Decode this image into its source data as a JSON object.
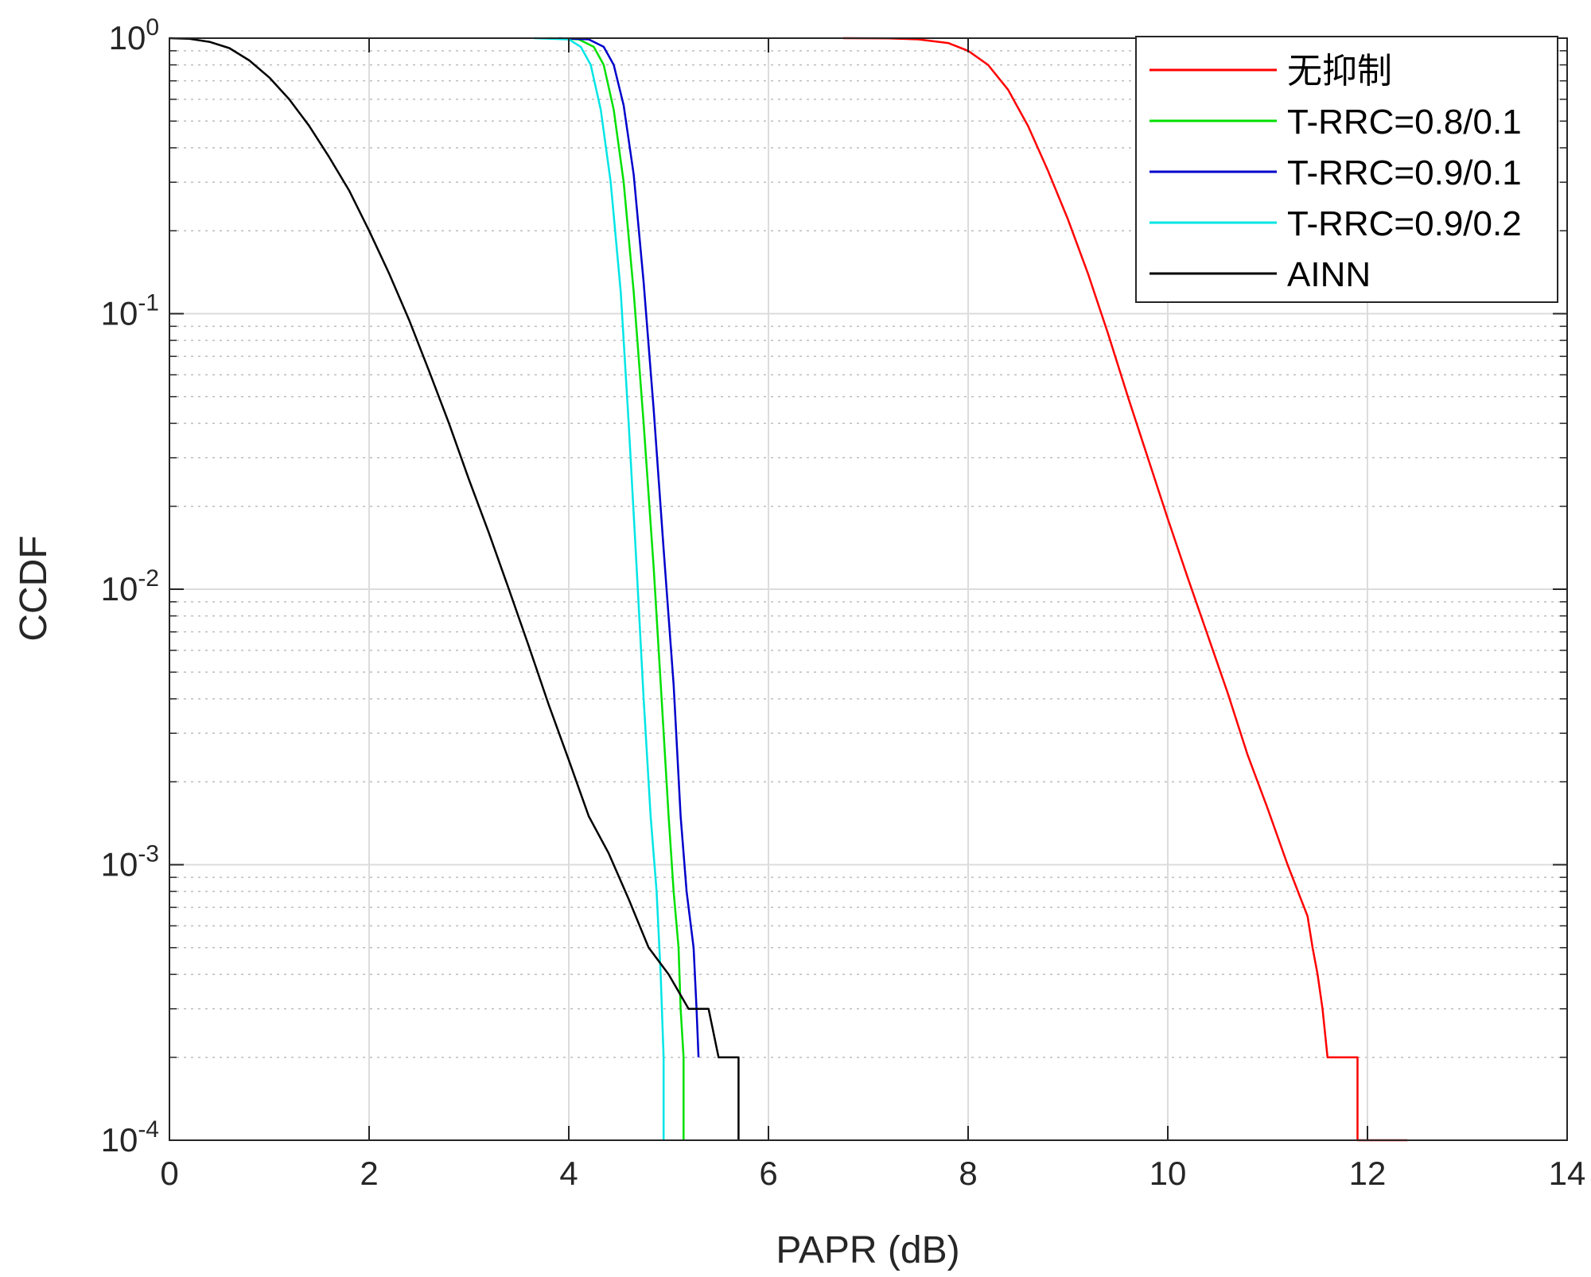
{
  "chart_data": {
    "type": "line",
    "title": "",
    "xlabel": "PAPR (dB)",
    "ylabel": "CCDF",
    "xscale": "linear",
    "yscale": "log",
    "xlim": [
      0,
      14
    ],
    "ylim": [
      0.0001,
      1
    ],
    "x_ticks": [
      "0",
      "2",
      "4",
      "6",
      "8",
      "10",
      "12",
      "14"
    ],
    "y_ticks": [
      {
        "base": "10",
        "exp": "0"
      },
      {
        "base": "10",
        "exp": "-1"
      },
      {
        "base": "10",
        "exp": "-2"
      },
      {
        "base": "10",
        "exp": "-3"
      },
      {
        "base": "10",
        "exp": "-4"
      }
    ],
    "grid": true,
    "legend_position": "top-right",
    "series": [
      {
        "name": "无抑制",
        "color": "#ff0000",
        "points": [
          [
            6.75,
            1
          ],
          [
            7.2,
            0.999
          ],
          [
            7.5,
            0.99
          ],
          [
            7.8,
            0.96
          ],
          [
            8.0,
            0.9
          ],
          [
            8.2,
            0.8
          ],
          [
            8.4,
            0.65
          ],
          [
            8.6,
            0.48
          ],
          [
            8.8,
            0.33
          ],
          [
            9.0,
            0.22
          ],
          [
            9.2,
            0.14
          ],
          [
            9.4,
            0.085
          ],
          [
            9.6,
            0.05
          ],
          [
            9.8,
            0.03
          ],
          [
            10.0,
            0.018
          ],
          [
            10.2,
            0.011
          ],
          [
            10.4,
            0.0068
          ],
          [
            10.6,
            0.0042
          ],
          [
            10.8,
            0.0025
          ],
          [
            11.0,
            0.0016
          ],
          [
            11.2,
            0.001
          ],
          [
            11.4,
            0.00065
          ],
          [
            11.45,
            0.0005
          ],
          [
            11.5,
            0.0004
          ],
          [
            11.55,
            0.0003
          ],
          [
            11.6,
            0.0002
          ],
          [
            11.9,
            0.0002
          ],
          [
            11.9,
            0.0001
          ],
          [
            12.4,
            0.0001
          ]
        ]
      },
      {
        "name": "T-RRC=0.8/0.1",
        "color": "#00e000",
        "points": [
          [
            3.8,
            1
          ],
          [
            4.1,
            0.99
          ],
          [
            4.25,
            0.93
          ],
          [
            4.35,
            0.8
          ],
          [
            4.45,
            0.55
          ],
          [
            4.55,
            0.3
          ],
          [
            4.65,
            0.12
          ],
          [
            4.75,
            0.04
          ],
          [
            4.85,
            0.012
          ],
          [
            4.93,
            0.004
          ],
          [
            5.0,
            0.0015
          ],
          [
            5.05,
            0.0008
          ],
          [
            5.1,
            0.0005
          ],
          [
            5.12,
            0.0003
          ],
          [
            5.15,
            0.0002
          ],
          [
            5.15,
            0.0001
          ]
        ]
      },
      {
        "name": "T-RRC=0.9/0.1",
        "color": "#0000cc",
        "points": [
          [
            3.9,
            1
          ],
          [
            4.2,
            0.99
          ],
          [
            4.35,
            0.93
          ],
          [
            4.45,
            0.8
          ],
          [
            4.55,
            0.57
          ],
          [
            4.65,
            0.32
          ],
          [
            4.75,
            0.13
          ],
          [
            4.85,
            0.045
          ],
          [
            4.95,
            0.014
          ],
          [
            5.05,
            0.0045
          ],
          [
            5.12,
            0.0015
          ],
          [
            5.18,
            0.0008
          ],
          [
            5.25,
            0.0005
          ],
          [
            5.28,
            0.0003
          ],
          [
            5.3,
            0.0002
          ]
        ]
      },
      {
        "name": "T-RRC=0.9/0.2",
        "color": "#00e5e5",
        "points": [
          [
            3.65,
            1
          ],
          [
            4.0,
            0.99
          ],
          [
            4.12,
            0.93
          ],
          [
            4.22,
            0.8
          ],
          [
            4.32,
            0.55
          ],
          [
            4.42,
            0.3
          ],
          [
            4.52,
            0.12
          ],
          [
            4.6,
            0.04
          ],
          [
            4.68,
            0.012
          ],
          [
            4.75,
            0.004
          ],
          [
            4.82,
            0.0015
          ],
          [
            4.88,
            0.0008
          ],
          [
            4.92,
            0.0004
          ],
          [
            4.95,
            0.0002
          ],
          [
            4.95,
            0.0001
          ]
        ]
      },
      {
        "name": "AINN",
        "color": "#000000",
        "points": [
          [
            0.0,
            1
          ],
          [
            0.2,
            0.995
          ],
          [
            0.4,
            0.97
          ],
          [
            0.6,
            0.92
          ],
          [
            0.8,
            0.83
          ],
          [
            1.0,
            0.72
          ],
          [
            1.2,
            0.6
          ],
          [
            1.4,
            0.48
          ],
          [
            1.6,
            0.37
          ],
          [
            1.8,
            0.28
          ],
          [
            2.0,
            0.2
          ],
          [
            2.2,
            0.14
          ],
          [
            2.4,
            0.095
          ],
          [
            2.6,
            0.062
          ],
          [
            2.8,
            0.04
          ],
          [
            3.0,
            0.025
          ],
          [
            3.2,
            0.016
          ],
          [
            3.4,
            0.01
          ],
          [
            3.6,
            0.0062
          ],
          [
            3.8,
            0.0038
          ],
          [
            4.0,
            0.0024
          ],
          [
            4.2,
            0.0015
          ],
          [
            4.4,
            0.0011
          ],
          [
            4.6,
            0.00075
          ],
          [
            4.8,
            0.0005
          ],
          [
            5.0,
            0.0004
          ],
          [
            5.2,
            0.0003
          ],
          [
            5.4,
            0.0003
          ],
          [
            5.5,
            0.0002
          ],
          [
            5.7,
            0.0002
          ],
          [
            5.7,
            0.0001
          ]
        ]
      }
    ]
  }
}
